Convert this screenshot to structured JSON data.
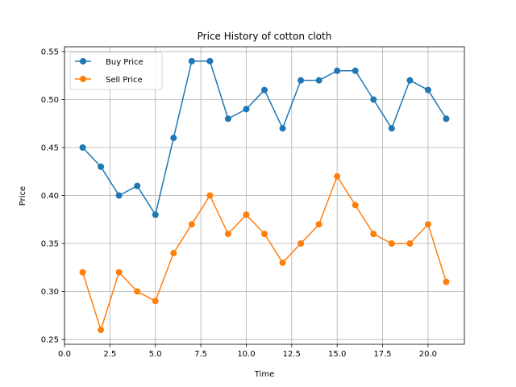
{
  "chart_data": {
    "type": "line",
    "title": "Price History of cotton cloth",
    "xlabel": "Time",
    "ylabel": "Price",
    "xlim": [
      0.0,
      22.0
    ],
    "ylim": [
      0.245,
      0.555
    ],
    "x_ticks": [
      0.0,
      2.5,
      5.0,
      7.5,
      10.0,
      12.5,
      15.0,
      17.5,
      20.0
    ],
    "x_tick_labels": [
      "0.0",
      "2.5",
      "5.0",
      "7.5",
      "10.0",
      "12.5",
      "15.0",
      "17.5",
      "20.0"
    ],
    "y_ticks": [
      0.25,
      0.3,
      0.35,
      0.4,
      0.45,
      0.5,
      0.55
    ],
    "y_tick_labels": [
      "0.25",
      "0.30",
      "0.35",
      "0.40",
      "0.45",
      "0.50",
      "0.55"
    ],
    "grid": true,
    "legend_position": "top-left",
    "x": [
      1,
      2,
      3,
      4,
      5,
      6,
      7,
      8,
      9,
      10,
      11,
      12,
      13,
      14,
      15,
      16,
      17,
      18,
      19,
      20,
      21
    ],
    "series": [
      {
        "name": "Buy Price",
        "color": "#1f77b4",
        "values": [
          0.45,
          0.43,
          0.4,
          0.41,
          0.38,
          0.46,
          0.54,
          0.54,
          0.48,
          0.49,
          0.51,
          0.47,
          0.52,
          0.52,
          0.53,
          0.53,
          0.5,
          0.47,
          0.52,
          0.51,
          0.48
        ]
      },
      {
        "name": "Sell Price",
        "color": "#ff7f0e",
        "values": [
          0.32,
          0.26,
          0.32,
          0.3,
          0.29,
          0.34,
          0.37,
          0.4,
          0.36,
          0.38,
          0.36,
          0.33,
          0.35,
          0.37,
          0.42,
          0.39,
          0.36,
          0.35,
          0.35,
          0.37,
          0.31
        ]
      }
    ]
  }
}
